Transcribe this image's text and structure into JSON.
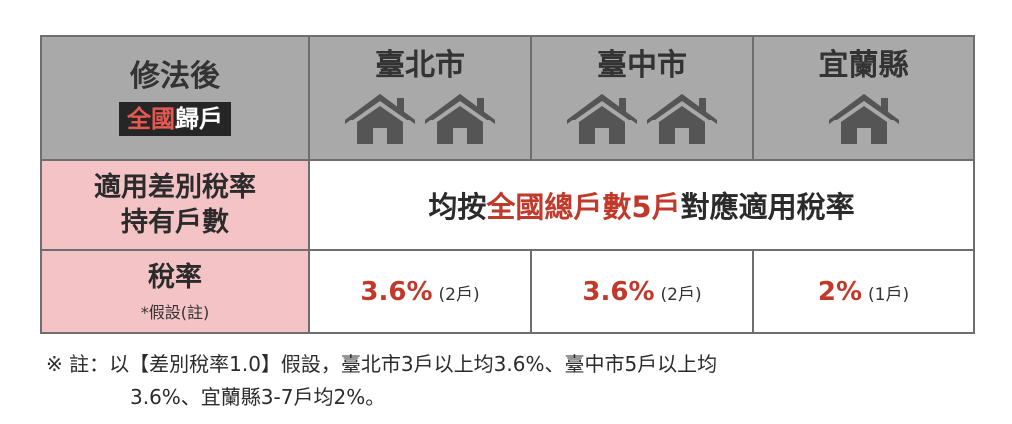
{
  "header": {
    "label_title": "修法後",
    "label_scope_red": "全國",
    "label_scope_rest": "歸戶",
    "cities": [
      "臺北市",
      "臺中市",
      "宜蘭縣"
    ],
    "house_counts": [
      2,
      2,
      1
    ],
    "house_icon": "house-icon"
  },
  "row_holdings": {
    "label_line1": "適用差別稅率",
    "label_line2": "持有戶數",
    "text_pre": "均按",
    "text_highlight": "全國總戶數5戶",
    "text_post": "對應適用稅率"
  },
  "row_rate": {
    "label": "稅率",
    "sublabel": "*假設(註)",
    "values": [
      {
        "rate": "3.6%",
        "unit": "(2戶)"
      },
      {
        "rate": "3.6%",
        "unit": "(2戶)"
      },
      {
        "rate": "2%",
        "unit": "(1戶)"
      }
    ]
  },
  "note": {
    "line1": "※ 註：以【差別稅率1.0】假設，臺北市3戶以上均3.6%、臺中市5戶以上均",
    "line2": "3.6%、宜蘭縣3-7戶均2%。"
  },
  "colors": {
    "header_bg": "#a9a9a9",
    "label_bg": "#f3c3c6",
    "accent_red": "#c0392b",
    "house_gray": "#555555"
  }
}
